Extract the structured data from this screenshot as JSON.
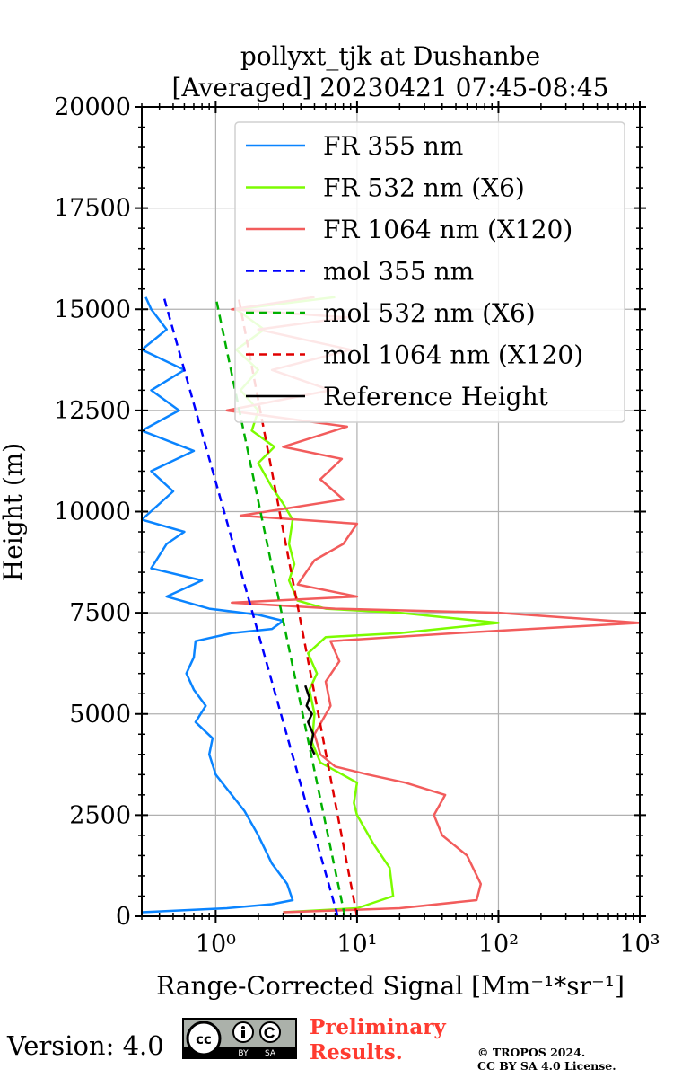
{
  "chart_data": {
    "type": "line",
    "title_line1": "pollyxt_tjk at Dushanbe",
    "title_line2": "[Averaged] 20230421 07:45-08:45",
    "xlabel": "Range-Corrected Signal [Mm⁻¹*sr⁻¹]",
    "ylabel": "Height (m)",
    "xscale": "log",
    "xlim": [
      0.3,
      1000
    ],
    "ylim": [
      0,
      20000
    ],
    "yticks": [
      0,
      2500,
      5000,
      7500,
      10000,
      12500,
      15000,
      17500,
      20000
    ],
    "ytick_labels": [
      "0",
      "2500",
      "5000",
      "7500",
      "10000",
      "12500",
      "15000",
      "17500",
      "20000"
    ],
    "xticks": [
      1,
      10,
      100,
      1000
    ],
    "xtick_labels": [
      "10⁰",
      "10¹",
      "10²",
      "10³"
    ],
    "grid": true,
    "legend_position": "top-right",
    "series": [
      {
        "name": "FR 355 nm",
        "color": "#0a84ff",
        "style": "solid",
        "points": [
          [
            0.3,
            100
          ],
          [
            1.2,
            200
          ],
          [
            2.5,
            300
          ],
          [
            3.5,
            400
          ],
          [
            3.2,
            800
          ],
          [
            2.5,
            1300
          ],
          [
            2.0,
            2000
          ],
          [
            1.6,
            2600
          ],
          [
            1.3,
            3000
          ],
          [
            1.0,
            3500
          ],
          [
            0.9,
            4000
          ],
          [
            0.95,
            4400
          ],
          [
            0.72,
            4800
          ],
          [
            0.85,
            5200
          ],
          [
            0.7,
            5600
          ],
          [
            0.62,
            6000
          ],
          [
            0.7,
            6400
          ],
          [
            0.72,
            6800
          ],
          [
            1.3,
            7000
          ],
          [
            2.5,
            7100
          ],
          [
            3.0,
            7300
          ],
          [
            2.0,
            7450
          ],
          [
            0.9,
            7600
          ],
          [
            0.45,
            7900
          ],
          [
            0.8,
            8300
          ],
          [
            0.35,
            8600
          ],
          [
            0.45,
            9200
          ],
          [
            0.6,
            9500
          ],
          [
            0.3,
            9800
          ],
          [
            0.5,
            10500
          ],
          [
            0.35,
            11000
          ],
          [
            0.7,
            11500
          ],
          [
            0.3,
            12000
          ],
          [
            0.55,
            12500
          ],
          [
            0.35,
            13000
          ],
          [
            0.6,
            13500
          ],
          [
            0.3,
            14000
          ],
          [
            0.45,
            14500
          ],
          [
            0.35,
            15000
          ],
          [
            0.32,
            15300
          ]
        ]
      },
      {
        "name": "FR 532 nm (X6)",
        "color": "#7cfc00",
        "style": "solid",
        "points": [
          [
            3.0,
            100
          ],
          [
            10,
            200
          ],
          [
            18,
            500
          ],
          [
            17,
            1200
          ],
          [
            13,
            1800
          ],
          [
            10,
            2500
          ],
          [
            9.5,
            2800
          ],
          [
            10,
            3300
          ],
          [
            7,
            3600
          ],
          [
            5.5,
            3800
          ],
          [
            4.8,
            4300
          ],
          [
            5.0,
            5000
          ],
          [
            4.6,
            5600
          ],
          [
            5.2,
            6000
          ],
          [
            4.5,
            6500
          ],
          [
            6.0,
            6900
          ],
          [
            20,
            7000
          ],
          [
            100,
            7250
          ],
          [
            20,
            7500
          ],
          [
            6,
            7600
          ],
          [
            3.8,
            7800
          ],
          [
            3.3,
            8300
          ],
          [
            3.6,
            8700
          ],
          [
            3.3,
            9200
          ],
          [
            3.5,
            9800
          ],
          [
            3.0,
            10200
          ],
          [
            2.5,
            10600
          ],
          [
            2.0,
            11200
          ],
          [
            2.6,
            11600
          ],
          [
            1.8,
            12000
          ],
          [
            2.0,
            12500
          ],
          [
            1.5,
            13000
          ],
          [
            2.0,
            13500
          ],
          [
            1.4,
            14000
          ],
          [
            2.2,
            14500
          ],
          [
            1.4,
            15000
          ],
          [
            7.0,
            15300
          ]
        ]
      },
      {
        "name": "FR 1064 nm (X120)",
        "color": "#f25c5c",
        "style": "solid",
        "points": [
          [
            3.0,
            100
          ],
          [
            20,
            200
          ],
          [
            70,
            400
          ],
          [
            75,
            800
          ],
          [
            60,
            1500
          ],
          [
            40,
            2000
          ],
          [
            35,
            2500
          ],
          [
            42,
            3000
          ],
          [
            22,
            3300
          ],
          [
            12,
            3500
          ],
          [
            7,
            3700
          ],
          [
            5.5,
            4000
          ],
          [
            5.0,
            4500
          ],
          [
            6.5,
            5200
          ],
          [
            6.0,
            5800
          ],
          [
            7.5,
            6300
          ],
          [
            6.5,
            6800
          ],
          [
            50,
            7000
          ],
          [
            1000,
            7250
          ],
          [
            100,
            7500
          ],
          [
            7,
            7600
          ],
          [
            1.3,
            7750
          ],
          [
            10,
            7900
          ],
          [
            3.8,
            8200
          ],
          [
            5,
            8800
          ],
          [
            8,
            9200
          ],
          [
            10,
            9700
          ],
          [
            1.5,
            9900
          ],
          [
            8,
            10300
          ],
          [
            5.5,
            10800
          ],
          [
            7.8,
            11300
          ],
          [
            3.0,
            11600
          ],
          [
            8.5,
            12100
          ],
          [
            1.2,
            12500
          ],
          [
            6.5,
            13000
          ],
          [
            2.5,
            13500
          ],
          [
            9.0,
            14000
          ],
          [
            2.0,
            14500
          ],
          [
            8.5,
            14800
          ],
          [
            1.3,
            15000
          ],
          [
            5.0,
            15300
          ]
        ]
      },
      {
        "name": "mol 355 nm",
        "color": "#0000ff",
        "style": "dashed",
        "points": [
          [
            7.3,
            0
          ],
          [
            0.43,
            15300
          ]
        ]
      },
      {
        "name": "mol 532 nm (X6)",
        "color": "#00b000",
        "style": "dashed",
        "points": [
          [
            8.2,
            0
          ],
          [
            1.0,
            15300
          ]
        ]
      },
      {
        "name": "mol 1064 nm (X120)",
        "color": "#e00000",
        "style": "dashed",
        "points": [
          [
            10.0,
            0
          ],
          [
            1.45,
            15300
          ]
        ]
      },
      {
        "name": "Reference Height",
        "color": "#000000",
        "style": "solid",
        "points": [
          [
            5.0,
            4000
          ],
          [
            4.7,
            4200
          ],
          [
            4.9,
            4500
          ],
          [
            4.5,
            4800
          ],
          [
            4.8,
            5000
          ],
          [
            4.4,
            5200
          ],
          [
            4.6,
            5400
          ],
          [
            4.3,
            5700
          ]
        ]
      }
    ]
  },
  "footer": {
    "version": "Version: 4.0",
    "license_badge": "cc-by-sa-badge",
    "preliminary_line1": "Preliminary",
    "preliminary_line2": "Results.",
    "copyright_line1": "© TROPOS 2024.",
    "copyright_line2": "CC BY SA 4.0 License."
  }
}
